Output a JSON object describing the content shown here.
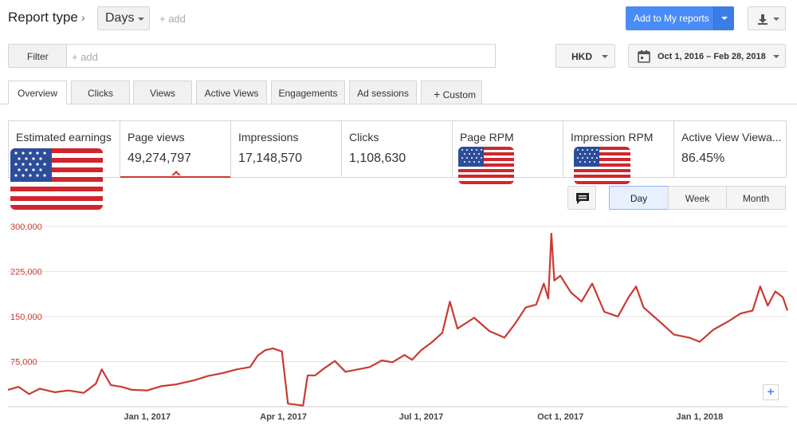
{
  "header": {
    "report_type": "Report type",
    "dimension": "Days",
    "add_dimension": "+ add",
    "add_to_reports": "Add to My reports"
  },
  "filter": {
    "label": "Filter",
    "placeholder": "+ add",
    "currency": "HKD",
    "date_range": "Oct 1, 2016 – Feb 28, 2018"
  },
  "tabs": [
    {
      "label": "Overview"
    },
    {
      "label": "Clicks"
    },
    {
      "label": "Views"
    },
    {
      "label": "Active Views"
    },
    {
      "label": "Engagements"
    },
    {
      "label": "Ad sessions"
    },
    {
      "label": "Custom"
    }
  ],
  "metrics": [
    {
      "label": "Estimated earnings",
      "value": ""
    },
    {
      "label": "Page views",
      "value": "49,274,797"
    },
    {
      "label": "Impressions",
      "value": "17,148,570"
    },
    {
      "label": "Clicks",
      "value": "1,108,630"
    },
    {
      "label": "Page RPM",
      "value": ""
    },
    {
      "label": "Impression RPM",
      "value": ""
    },
    {
      "label": "Active View Viewa...",
      "value": "86.45%"
    }
  ],
  "period": {
    "day": "Day",
    "week": "Week",
    "month": "Month",
    "selected": "Day"
  },
  "colors": {
    "series": "#c93a32",
    "accent": "#4a8cf7"
  },
  "chart_data": {
    "type": "line",
    "title": "",
    "xlabel": "",
    "ylabel": "",
    "x_tick_labels": [
      "Jan 1, 2017",
      "Apr 1, 2017",
      "Jul 1, 2017",
      "Oct 1, 2017",
      "Jan 1, 2018"
    ],
    "y_tick_labels": [
      "300,000",
      "225,000",
      "150,000",
      "75,000"
    ],
    "ylim": [
      0,
      300000
    ],
    "x_range": [
      "2016-10-01",
      "2018-02-28"
    ],
    "grid": true,
    "series": [
      {
        "name": "Page views",
        "points": [
          [
            "2016-10-01",
            28000
          ],
          [
            "2016-10-08",
            33000
          ],
          [
            "2016-10-15",
            21000
          ],
          [
            "2016-10-22",
            30000
          ],
          [
            "2016-11-01",
            24000
          ],
          [
            "2016-11-10",
            27000
          ],
          [
            "2016-11-20",
            23000
          ],
          [
            "2016-11-28",
            38000
          ],
          [
            "2016-12-02",
            62000
          ],
          [
            "2016-12-08",
            36000
          ],
          [
            "2016-12-15",
            33000
          ],
          [
            "2016-12-22",
            28000
          ],
          [
            "2017-01-01",
            27000
          ],
          [
            "2017-01-10",
            34000
          ],
          [
            "2017-01-20",
            37000
          ],
          [
            "2017-02-01",
            44000
          ],
          [
            "2017-02-10",
            51000
          ],
          [
            "2017-02-20",
            56000
          ],
          [
            "2017-03-01",
            62000
          ],
          [
            "2017-03-10",
            66000
          ],
          [
            "2017-03-15",
            85000
          ],
          [
            "2017-03-20",
            94000
          ],
          [
            "2017-03-25",
            97000
          ],
          [
            "2017-03-31",
            92000
          ],
          [
            "2017-04-04",
            5000
          ],
          [
            "2017-04-10",
            3000
          ],
          [
            "2017-04-14",
            2000
          ],
          [
            "2017-04-17",
            52000
          ],
          [
            "2017-04-22",
            52000
          ],
          [
            "2017-04-28",
            64000
          ],
          [
            "2017-05-05",
            76000
          ],
          [
            "2017-05-12",
            58000
          ],
          [
            "2017-05-20",
            62000
          ],
          [
            "2017-05-28",
            66000
          ],
          [
            "2017-06-05",
            77000
          ],
          [
            "2017-06-12",
            74000
          ],
          [
            "2017-06-20",
            86000
          ],
          [
            "2017-06-25",
            78000
          ],
          [
            "2017-07-01",
            94000
          ],
          [
            "2017-07-08",
            107000
          ],
          [
            "2017-07-15",
            123000
          ],
          [
            "2017-07-20",
            175000
          ],
          [
            "2017-07-25",
            130000
          ],
          [
            "2017-08-05",
            148000
          ],
          [
            "2017-08-15",
            126000
          ],
          [
            "2017-08-25",
            115000
          ],
          [
            "2017-09-01",
            138000
          ],
          [
            "2017-09-08",
            165000
          ],
          [
            "2017-09-15",
            170000
          ],
          [
            "2017-09-20",
            205000
          ],
          [
            "2017-09-23",
            180000
          ],
          [
            "2017-09-25",
            288000
          ],
          [
            "2017-09-27",
            210000
          ],
          [
            "2017-10-01",
            218000
          ],
          [
            "2017-10-08",
            190000
          ],
          [
            "2017-10-15",
            175000
          ],
          [
            "2017-10-22",
            205000
          ],
          [
            "2017-10-30",
            158000
          ],
          [
            "2017-11-08",
            150000
          ],
          [
            "2017-11-15",
            182000
          ],
          [
            "2017-11-20",
            200000
          ],
          [
            "2017-11-25",
            165000
          ],
          [
            "2017-12-05",
            143000
          ],
          [
            "2017-12-15",
            120000
          ],
          [
            "2017-12-25",
            115000
          ],
          [
            "2018-01-01",
            108000
          ],
          [
            "2018-01-10",
            128000
          ],
          [
            "2018-01-20",
            142000
          ],
          [
            "2018-01-28",
            155000
          ],
          [
            "2018-02-05",
            160000
          ],
          [
            "2018-02-10",
            200000
          ],
          [
            "2018-02-15",
            168000
          ],
          [
            "2018-02-20",
            192000
          ],
          [
            "2018-02-25",
            182000
          ],
          [
            "2018-02-28",
            160000
          ]
        ]
      }
    ]
  }
}
